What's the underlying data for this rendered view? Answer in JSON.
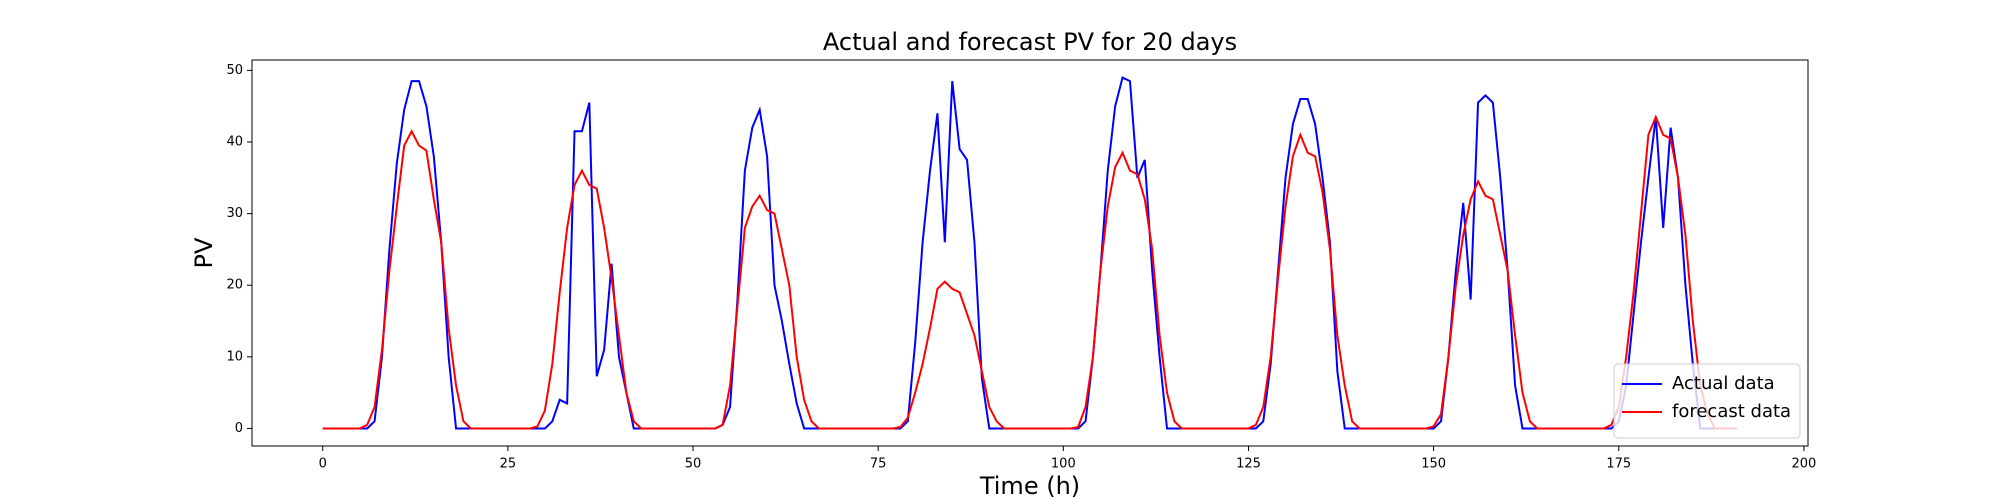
{
  "chart_data": {
    "type": "line",
    "title": "Actual and forecast PV for 20 days",
    "x_label": "Time (h)",
    "y_label": "PV",
    "x": [
      0,
      1,
      2,
      3,
      4,
      5,
      6,
      7,
      8,
      9,
      10,
      11,
      12,
      13,
      14,
      15,
      16,
      17,
      18,
      19,
      20,
      21,
      22,
      23,
      24,
      25,
      26,
      27,
      28,
      29,
      30,
      31,
      32,
      33,
      34,
      35,
      36,
      37,
      38,
      39,
      40,
      41,
      42,
      43,
      44,
      45,
      46,
      47,
      48,
      49,
      50,
      51,
      52,
      53,
      54,
      55,
      56,
      57,
      58,
      59,
      60,
      61,
      62,
      63,
      64,
      65,
      66,
      67,
      68,
      69,
      70,
      71,
      72,
      73,
      74,
      75,
      76,
      77,
      78,
      79,
      80,
      81,
      82,
      83,
      84,
      85,
      86,
      87,
      88,
      89,
      90,
      91,
      92,
      93,
      94,
      95,
      96,
      97,
      98,
      99,
      100,
      101,
      102,
      103,
      104,
      105,
      106,
      107,
      108,
      109,
      110,
      111,
      112,
      113,
      114,
      115,
      116,
      117,
      118,
      119,
      120,
      121,
      122,
      123,
      124,
      125,
      126,
      127,
      128,
      129,
      130,
      131,
      132,
      133,
      134,
      135,
      136,
      137,
      138,
      139,
      140,
      141,
      142,
      143,
      144,
      145,
      146,
      147,
      148,
      149,
      150,
      151,
      152,
      153,
      154,
      155,
      156,
      157,
      158,
      159,
      160,
      161,
      162,
      163,
      164,
      165,
      166,
      167,
      168,
      169,
      170,
      171,
      172,
      173,
      174,
      175,
      176,
      177,
      178,
      179,
      180,
      181,
      182,
      183,
      184,
      185,
      186,
      187,
      188,
      189,
      190,
      191
    ],
    "series": [
      {
        "name": "Actual data",
        "color": "#0000ff",
        "values": [
          0,
          0,
          0,
          0,
          0,
          0,
          0,
          1,
          10,
          25,
          37,
          44.5,
          48.5,
          48.5,
          45,
          38,
          26,
          10,
          0,
          0,
          0,
          0,
          0,
          0,
          0,
          0,
          0,
          0,
          0,
          0,
          0,
          1,
          4,
          3.5,
          41.5,
          41.5,
          45.5,
          7.3,
          11,
          23,
          10,
          5,
          0,
          0,
          0,
          0,
          0,
          0,
          0,
          0,
          0,
          0,
          0,
          0,
          0.5,
          3,
          18,
          36,
          42,
          44.5,
          38,
          20,
          15,
          9,
          3.5,
          0,
          0,
          0,
          0,
          0,
          0,
          0,
          0,
          0,
          0,
          0,
          0,
          0,
          0,
          1,
          12,
          26,
          36,
          44,
          26,
          48.5,
          39,
          37.5,
          26,
          7,
          0,
          0,
          0,
          0,
          0,
          0,
          0,
          0,
          0,
          0,
          0,
          0,
          0,
          1,
          10,
          22,
          36,
          45,
          49,
          48.5,
          35,
          37.5,
          22,
          10,
          0,
          0,
          0,
          0,
          0,
          0,
          0,
          0,
          0,
          0,
          0,
          0,
          0,
          1,
          9,
          22,
          35,
          42.5,
          46,
          46,
          42.5,
          35,
          26,
          8,
          0,
          0,
          0,
          0,
          0,
          0,
          0,
          0,
          0,
          0,
          0,
          0,
          0,
          1,
          10,
          22,
          31.5,
          18,
          45.5,
          46.5,
          45.5,
          35,
          22,
          6,
          0,
          0,
          0,
          0,
          0,
          0,
          0,
          0,
          0,
          0,
          0,
          0,
          0,
          1,
          6,
          16,
          26,
          35,
          43.5,
          28,
          42,
          35,
          20,
          9,
          0,
          0,
          0,
          0,
          0,
          0
        ]
      },
      {
        "name": "forecast data",
        "color": "#ff0000",
        "values": [
          0,
          0,
          0,
          0,
          0,
          0,
          0.5,
          3,
          11,
          22,
          31,
          39.5,
          41.5,
          39.5,
          38.8,
          32,
          26,
          14,
          6,
          1,
          0,
          0,
          0,
          0,
          0,
          0,
          0,
          0,
          0,
          0.3,
          2.5,
          9,
          19,
          28,
          34,
          36,
          34,
          33.5,
          28,
          21,
          13,
          5,
          1,
          0,
          0,
          0,
          0,
          0,
          0,
          0,
          0,
          0,
          0,
          0,
          0.5,
          6,
          17,
          28,
          31,
          32.5,
          30.5,
          30,
          25,
          20,
          10,
          4,
          1,
          0,
          0,
          0,
          0,
          0,
          0,
          0,
          0,
          0,
          0,
          0,
          0.2,
          1.5,
          5,
          9,
          14,
          19.5,
          20.5,
          19.5,
          19,
          16,
          13,
          8,
          3,
          1,
          0,
          0,
          0,
          0,
          0,
          0,
          0,
          0,
          0,
          0,
          0.2,
          3,
          10,
          22,
          31,
          36.5,
          38.5,
          36,
          35.5,
          32,
          25,
          13,
          5,
          1,
          0,
          0,
          0,
          0,
          0,
          0,
          0,
          0,
          0,
          0,
          0.5,
          3,
          10,
          21,
          31,
          38,
          41,
          38.5,
          38,
          33,
          25,
          13,
          6,
          1,
          0,
          0,
          0,
          0,
          0,
          0,
          0,
          0,
          0,
          0,
          0.3,
          2,
          10,
          20,
          27,
          32,
          34.5,
          32.5,
          32,
          27,
          22,
          13,
          5,
          1,
          0,
          0,
          0,
          0,
          0,
          0,
          0,
          0,
          0,
          0,
          0.5,
          3,
          10,
          19,
          30,
          41,
          43.5,
          41,
          40.5,
          35,
          27,
          15,
          6,
          2,
          0,
          0,
          0,
          0
        ]
      }
    ],
    "xlim": [
      -9.55,
      200.55
    ],
    "xticks": [
      0,
      25,
      50,
      75,
      100,
      125,
      150,
      175,
      200
    ],
    "ylim": [
      -2.45,
      51.45
    ],
    "yticks": [
      0,
      10,
      20,
      30,
      40,
      50
    ],
    "legend": "lower right"
  }
}
